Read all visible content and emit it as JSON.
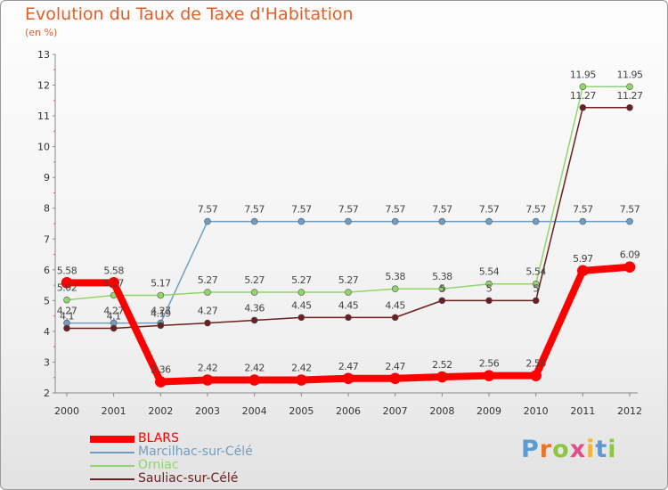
{
  "chart_data": {
    "type": "line",
    "title": "Evolution du Taux de Taxe d'Habitation",
    "subtitle": "(en %)",
    "xlabel": "",
    "ylabel": "",
    "categories": [
      "2000",
      "2001",
      "2002",
      "2003",
      "2004",
      "2005",
      "2006",
      "2007",
      "2008",
      "2009",
      "2010",
      "2011",
      "2012"
    ],
    "ylim": [
      2,
      13
    ],
    "yticks": [
      "2",
      "3",
      "4",
      "5",
      "6",
      "7",
      "8",
      "9",
      "10",
      "11",
      "12",
      "13"
    ],
    "grid": false,
    "legend_position": "bottom-left",
    "series": [
      {
        "name": "BLARS",
        "color": "#ff0000",
        "values": [
          5.58,
          5.58,
          2.36,
          2.42,
          2.42,
          2.42,
          2.47,
          2.47,
          2.52,
          2.56,
          2.56,
          5.97,
          6.09
        ],
        "labels": [
          "5.58",
          "5.58",
          "2.36",
          "2.42",
          "2.42",
          "2.42",
          "2.47",
          "2.47",
          "2.52",
          "2.56",
          "2.56",
          "5.97",
          "6.09"
        ]
      },
      {
        "name": "Marcilhac-sur-Célé",
        "color": "#6f9ec4",
        "values": [
          4.27,
          4.27,
          4.27,
          7.57,
          7.57,
          7.57,
          7.57,
          7.57,
          7.57,
          7.57,
          7.57,
          7.57,
          7.57
        ],
        "labels": [
          "4.27",
          "4.27",
          "4.27",
          "7.57",
          "7.57",
          "7.57",
          "7.57",
          "7.57",
          "7.57",
          "7.57",
          "7.57",
          "7.57",
          "7.57"
        ]
      },
      {
        "name": "Orniac",
        "color": "#90d66b",
        "values": [
          5.02,
          5.17,
          5.17,
          5.27,
          5.27,
          5.27,
          5.27,
          5.38,
          5.38,
          5.54,
          5.54,
          11.95,
          11.95
        ],
        "labels": [
          "5.02",
          "5.17",
          "5.17",
          "5.27",
          "5.27",
          "5.27",
          "5.27",
          "5.38",
          "5.38",
          "5.54",
          "5.54",
          "11.95",
          "11.95"
        ]
      },
      {
        "name": "Sauliac-sur-Célé",
        "color": "#6b1f1f",
        "values": [
          4.1,
          4.1,
          4.19,
          4.27,
          4.36,
          4.45,
          4.45,
          4.45,
          5,
          5,
          5,
          11.27,
          11.27
        ],
        "labels": [
          "4.1",
          "4.1",
          "4.19",
          "4.27",
          "4.36",
          "4.45",
          "4.45",
          "4.45",
          "5",
          "5",
          "5",
          "11.27",
          "11.27"
        ]
      }
    ]
  },
  "logo": {
    "text": "Proxiti",
    "letter_colors": [
      "#5b9bd5",
      "#e8742b",
      "#8dc63f",
      "#e84a8b",
      "#f2b632",
      "#5b9bd5",
      "#8dc63f"
    ]
  }
}
